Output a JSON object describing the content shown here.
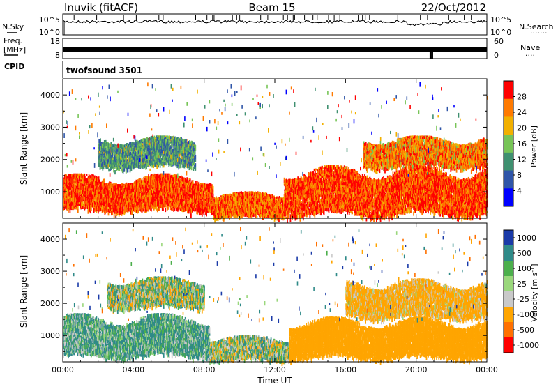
{
  "header": {
    "station": "Inuvik (fitACF)",
    "beam": "Beam 15",
    "date": "22/Oct/2012"
  },
  "left_labels": {
    "nsky": "N.Sky",
    "freq_line1": "Freq.",
    "freq_line2": "[MHz]",
    "cpid": "CPID"
  },
  "right_labels": {
    "nsearch": "N.Search",
    "nave": "Nave"
  },
  "cpid_name": "twofsound 3501",
  "chart_data": [
    {
      "type": "line",
      "name": "noise-sky-search",
      "y_scale": "log",
      "ylim_left": [
        1,
        100000
      ],
      "ylim_right": [
        1,
        100000
      ],
      "left_tick_labels": [
        "10^5",
        "10^0"
      ],
      "right_tick_labels": [
        "10^5",
        "10^0"
      ],
      "series": [
        {
          "name": "N.Sky",
          "level_approx": 30000
        },
        {
          "name": "N.Search",
          "level_approx": 30000
        }
      ],
      "x_unit": "hours UT",
      "xlim": [
        0,
        24
      ]
    },
    {
      "type": "line",
      "name": "frequency-nave",
      "ylim_left": [
        8,
        18
      ],
      "ylim_right": [
        0,
        60
      ],
      "left_tick_labels": [
        "18",
        "8"
      ],
      "right_tick_labels": [
        "60",
        "0"
      ],
      "series": [
        {
          "name": "Freq.",
          "unit": "MHz",
          "dropouts_hours": [
            20.8,
            20.9
          ]
        },
        {
          "name": "Nave",
          "value_approx": 23
        }
      ]
    },
    {
      "type": "heatmap",
      "name": "power",
      "xlabel": "",
      "ylabel": "Slant Range [km]",
      "x_ticks": [
        "00:00",
        "04:00",
        "08:00",
        "12:00",
        "16:00",
        "20:00",
        "00:00"
      ],
      "x_tick_hours": [
        0,
        4,
        8,
        12,
        16,
        20,
        24
      ],
      "y_ticks": [
        1000,
        2000,
        3000,
        4000
      ],
      "ylim": [
        180,
        4500
      ],
      "colorbar": {
        "label": "Power [dB]",
        "ticks": [
          4,
          8,
          12,
          16,
          20,
          24,
          28
        ],
        "range": [
          0,
          32
        ],
        "colors": [
          "#0000ff",
          "#2f55a8",
          "#3f9070",
          "#77c457",
          "#f2b000",
          "#ff7a00",
          "#ff0000"
        ]
      },
      "bands": [
        {
          "label": "main",
          "t_start": 0,
          "t_end": 8.5,
          "range_low": 450,
          "range_high": 1400,
          "value": 28
        },
        {
          "label": "descending",
          "t_start": 8.5,
          "t_end": 12.5,
          "range_low": 250,
          "range_high": 900,
          "value": 26
        },
        {
          "label": "post-noon",
          "t_start": 12.5,
          "t_end": 24,
          "range_low": 350,
          "range_high": 1600,
          "value": 28
        },
        {
          "label": "upper-morning",
          "t_start": 2,
          "t_end": 7.5,
          "range_low": 1800,
          "range_high": 2600,
          "value": 12
        },
        {
          "label": "evening-high",
          "t_start": 17,
          "t_end": 24,
          "range_low": 1800,
          "range_high": 2600,
          "value": 24
        }
      ]
    },
    {
      "type": "heatmap",
      "name": "velocity",
      "xlabel": "Time UT",
      "ylabel": "Slant Range [km]",
      "x_ticks": [
        "00:00",
        "04:00",
        "08:00",
        "12:00",
        "16:00",
        "20:00",
        "00:00"
      ],
      "x_tick_hours": [
        0,
        4,
        8,
        12,
        16,
        20,
        24
      ],
      "y_ticks": [
        1000,
        2000,
        3000,
        4000
      ],
      "ylim": [
        180,
        4500
      ],
      "colorbar": {
        "label": "Velocity [m s^-1]",
        "ticks": [
          1000,
          500,
          100,
          25,
          -25,
          -100,
          -500,
          -1000
        ],
        "colors": [
          "#1a3aa8",
          "#2f8a88",
          "#4caf4c",
          "#9ad77c",
          "#c9c9c9",
          "#ffa500",
          "#ff7000",
          "#ff0000"
        ]
      },
      "bands": [
        {
          "label": "morning-low",
          "t_start": 0,
          "t_end": 8.3,
          "range_low": 400,
          "range_high": 1500,
          "value": 100
        },
        {
          "label": "morning-high",
          "t_start": 2.5,
          "t_end": 8,
          "range_low": 1900,
          "range_high": 2700,
          "value": 0
        },
        {
          "label": "midday",
          "t_start": 8.3,
          "t_end": 12.8,
          "range_low": 250,
          "range_high": 900,
          "value": 0
        },
        {
          "label": "afternoon",
          "t_start": 12.8,
          "t_end": 24,
          "range_low": 350,
          "range_high": 1400,
          "value": -300
        },
        {
          "label": "evening-high",
          "t_start": 16,
          "t_end": 24,
          "range_low": 1600,
          "range_high": 2600,
          "value": -200
        }
      ]
    }
  ]
}
